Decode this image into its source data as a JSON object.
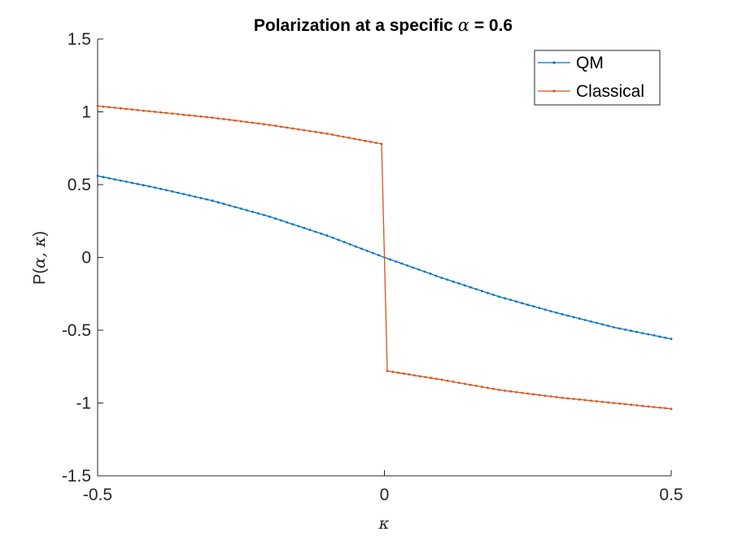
{
  "chart_data": {
    "type": "line",
    "title_prefix": "Polarization at a specific ",
    "title_symbol": "α",
    "title_suffix": " = 0.6",
    "xlabel": "κ",
    "ylabel_prefix": "P(",
    "ylabel_vars": "α, κ",
    "ylabel_suffix": ")",
    "xlim": [
      -0.5,
      0.5
    ],
    "ylim": [
      -1.5,
      1.5
    ],
    "xticks": [
      "-0.5",
      "0",
      "0.5"
    ],
    "yticks": [
      "1.5",
      "1",
      "0.5",
      "0",
      "-0.5",
      "-1",
      "-1.5"
    ],
    "legend_placement": "top-right",
    "grid": false,
    "series": [
      {
        "name": "QM",
        "color": "#0072BD",
        "x": [
          -0.5,
          -0.4,
          -0.3,
          -0.2,
          -0.1,
          0,
          0.1,
          0.2,
          0.3,
          0.4,
          0.5
        ],
        "y": [
          0.56,
          0.48,
          0.39,
          0.28,
          0.15,
          0.0,
          -0.14,
          -0.27,
          -0.38,
          -0.48,
          -0.56
        ]
      },
      {
        "name": "Classical",
        "color": "#D95319",
        "x": [
          -0.5,
          -0.4,
          -0.3,
          -0.2,
          -0.1,
          -0.005,
          0.005,
          0.1,
          0.2,
          0.3,
          0.4,
          0.5
        ],
        "y": [
          1.04,
          1.0,
          0.96,
          0.91,
          0.85,
          0.78,
          -0.78,
          -0.84,
          -0.91,
          -0.96,
          -1.0,
          -1.04
        ]
      }
    ]
  }
}
